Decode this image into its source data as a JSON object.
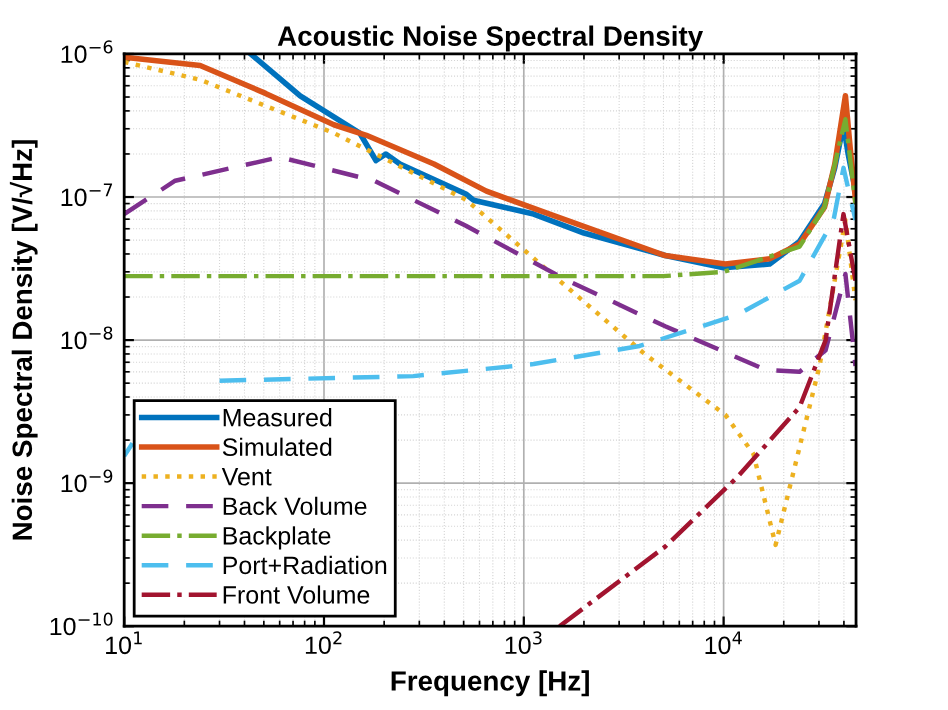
{
  "chart_data": {
    "type": "line",
    "title": "Acoustic Noise Spectral Density",
    "xlabel": "Frequency [Hz]",
    "ylabel": "Noise Spectral Density [V/√Hz]",
    "log": "xy",
    "xlim": [
      10,
      46000
    ],
    "ylim": [
      1e-10,
      1e-06
    ],
    "xticks": [
      {
        "value": 10,
        "label": "10$^{1}$"
      },
      {
        "value": 100,
        "label": "10$^{2}$"
      },
      {
        "value": 1000,
        "label": "10$^{3}$"
      },
      {
        "value": 10000,
        "label": "10$^{4}$"
      }
    ],
    "yticks": [
      {
        "value": 1e-10,
        "label": "10$^{−10}$"
      },
      {
        "value": 1e-09,
        "label": "10$^{−9}$"
      },
      {
        "value": 1e-08,
        "label": "10$^{−8}$"
      },
      {
        "value": 1e-07,
        "label": "10$^{−7}$"
      },
      {
        "value": 1e-06,
        "label": "10$^{−6}$"
      }
    ],
    "grid": true,
    "legend": "bottom left",
    "series": [
      {
        "name": "Measured",
        "color": "#0072bd",
        "line_style": "solid",
        "x": [
          43,
          76,
          151,
          182,
          204,
          240,
          513,
          560,
          1120,
          2000,
          5100,
          10000,
          17000,
          24000,
          32000,
          36000,
          39800,
          42000,
          45700
        ],
        "values": [
          1e-06,
          5.1e-07,
          2.8e-07,
          1.8e-07,
          2e-07,
          1.7e-07,
          1.05e-07,
          9.5e-08,
          7.6e-08,
          5.6e-08,
          3.9e-08,
          3.2e-08,
          3.4e-08,
          4.9e-08,
          9e-08,
          1.6e-07,
          3.2e-07,
          2e-07,
          1.1e-07
        ]
      },
      {
        "name": "Simulated",
        "color": "#d95319",
        "line_style": "solid",
        "x": [
          10,
          24,
          51,
          112,
          163,
          355,
          650,
          1413,
          5100,
          10200,
          17000,
          24000,
          32000,
          36000,
          40700,
          43000,
          45700
        ],
        "values": [
          9.5e-07,
          8.3e-07,
          5.3e-07,
          3.2e-07,
          2.7e-07,
          1.7e-07,
          1.1e-07,
          7.4e-08,
          3.9e-08,
          3.4e-08,
          3.7e-08,
          4.7e-08,
          8.5e-08,
          1.7e-07,
          5.1e-07,
          2.2e-07,
          9.6e-08
        ]
      },
      {
        "name": "Vent",
        "color": "#edb120",
        "line_style": "dotted",
        "x": [
          10,
          24,
          112,
          513,
          1510,
          4070,
          10200,
          14100,
          18200,
          30200,
          40700,
          45700
        ],
        "values": [
          8.8e-07,
          6.6e-07,
          2.8e-07,
          9.6e-08,
          2.6e-08,
          7.9e-09,
          3e-09,
          1.6e-09,
          3.7e-10,
          6.6e-09,
          6.9e-08,
          1.9e-08
        ]
      },
      {
        "name": "Back Volume",
        "color": "#7e2f8e",
        "line_style": "dashed",
        "x": [
          10,
          18,
          60,
          178,
          513,
          1660,
          5100,
          16200,
          24000,
          32400,
          40700,
          45700
        ],
        "values": [
          7.6e-08,
          1.3e-07,
          1.9e-07,
          1.3e-07,
          6.3e-08,
          2.6e-08,
          1.25e-08,
          6.2e-09,
          6e-09,
          8.5e-09,
          2.9e-08,
          6.6e-09
        ]
      },
      {
        "name": "Backplate",
        "color": "#77ac30",
        "line_style": "dashdot",
        "x": [
          10,
          5000,
          10000,
          24000,
          32000,
          40700,
          45700
        ],
        "values": [
          2.8e-08,
          2.8e-08,
          3e-08,
          4.5e-08,
          8.5e-08,
          3.5e-07,
          9e-08
        ]
      },
      {
        "name": "Port+Radiation",
        "color": "#4dbeee",
        "line_style": "dashed",
        "x": [
          10,
          11,
          16,
          30,
          280,
          1120,
          3800,
          11700,
          24000,
          35500,
          39800,
          45700
        ],
        "values": [
          1.55e-09,
          1.9e-09,
          null,
          5.2e-09,
          5.6e-09,
          6.8e-09,
          9.1e-09,
          1.5e-08,
          2.6e-08,
          6.9e-08,
          1.6e-07,
          6.9e-08
        ]
      },
      {
        "name": "Front Volume",
        "color": "#a2142f",
        "line_style": "dashdot",
        "x": [
          1510,
          5100,
          11700,
          24000,
          32400,
          39800,
          45700
        ],
        "values": [
          1e-10,
          3.6e-10,
          1.1e-09,
          3.4e-09,
          1e-08,
          7.6e-08,
          2.6e-08
        ]
      }
    ]
  }
}
